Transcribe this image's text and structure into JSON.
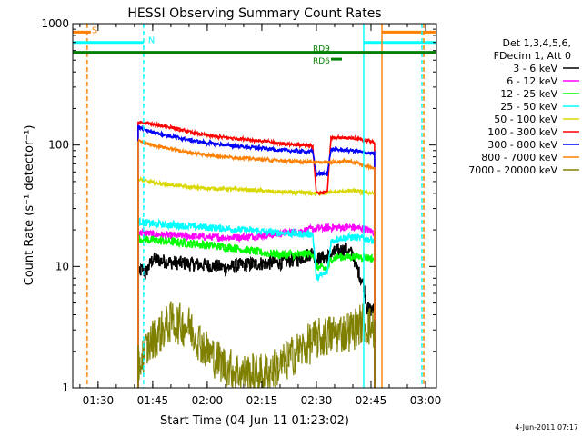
{
  "chart_data": {
    "type": "line",
    "title": "HESSI Observing Summary Count Rates",
    "xlabel": "Start Time (04-Jun-11 01:23:02)",
    "ylabel": "Count Rate (s⁻¹ detector⁻¹)",
    "ylog": true,
    "xlim": [
      "01:23:02",
      "03:03:00"
    ],
    "ylim": [
      1,
      1000
    ],
    "x_ticks": [
      "01:30",
      "01:45",
      "02:00",
      "02:15",
      "02:30",
      "02:45",
      "03:00"
    ],
    "y_ticks": [
      "1",
      "10",
      "100",
      "1000"
    ],
    "grid": false,
    "timestamp": "4-Jun-2011 07:17",
    "legend": {
      "placement": "right",
      "header": [
        "Det 1,3,4,5,6,",
        "FDecim 1, Att 0"
      ],
      "entries": [
        {
          "label": "3 - 6 keV",
          "color": "#000000"
        },
        {
          "label": "6 - 12 keV",
          "color": "#ff00ff"
        },
        {
          "label": "12 - 25 keV",
          "color": "#00ff00"
        },
        {
          "label": "25 - 50 keV",
          "color": "#00ffff"
        },
        {
          "label": "50 - 100 keV",
          "color": "#d8d800"
        },
        {
          "label": "100 - 300 keV",
          "color": "#ff0000"
        },
        {
          "label": "300 - 800 keV",
          "color": "#0000ff"
        },
        {
          "label": "800 - 7000 keV",
          "color": "#ff8000"
        },
        {
          "label": "7000 - 20000 keV",
          "color": "#808000"
        }
      ]
    },
    "series": [
      {
        "name": "3 - 6 keV",
        "color": "#000000",
        "noise": 0.12,
        "x": [
          "01:41:00",
          "01:42:00",
          "01:43:00",
          "01:45:00",
          "01:50:00",
          "01:55:00",
          "02:00:00",
          "02:05:00",
          "02:10:00",
          "02:15:00",
          "02:20:00",
          "02:25:00",
          "02:29:00",
          "02:30:00",
          "02:33:00",
          "02:35:00",
          "02:38:00",
          "02:40:00",
          "02:41:00",
          "02:43:00",
          "02:44:00",
          "02:46:00"
        ],
        "y": [
          8.5,
          9.5,
          8.8,
          11.5,
          10.8,
          10.5,
          10.2,
          9.8,
          10.3,
          10.6,
          10.8,
          11.5,
          13,
          11.5,
          12,
          13,
          14,
          12.5,
          10,
          7,
          4.5,
          4.3
        ]
      },
      {
        "name": "6 - 12 keV",
        "color": "#ff00ff",
        "noise": 0.06,
        "x": [
          "01:41:00",
          "01:45:00",
          "01:50:00",
          "01:55:00",
          "02:00:00",
          "02:05:00",
          "02:10:00",
          "02:15:00",
          "02:20:00",
          "02:25:00",
          "02:30:00",
          "02:35:00",
          "02:40:00",
          "02:43:00",
          "02:46:00"
        ],
        "y": [
          19,
          18.5,
          18,
          17.8,
          17.5,
          17.3,
          17.5,
          18,
          18.5,
          19.5,
          20.5,
          21,
          21,
          20.5,
          19
        ]
      },
      {
        "name": "12 - 25 keV",
        "color": "#00ff00",
        "noise": 0.07,
        "x": [
          "01:41:00",
          "01:45:00",
          "01:50:00",
          "01:55:00",
          "02:00:00",
          "02:05:00",
          "02:10:00",
          "02:15:00",
          "02:20:00",
          "02:25:00",
          "02:29:00",
          "02:30:00",
          "02:33:00",
          "02:34:00",
          "02:36:00",
          "02:40:00",
          "02:43:00",
          "02:46:00"
        ],
        "y": [
          17,
          16.5,
          16,
          15.5,
          15,
          14.5,
          13.8,
          13,
          12.5,
          12.5,
          12.8,
          10,
          9.5,
          11.5,
          12,
          12,
          12,
          11.5
        ]
      },
      {
        "name": "25 - 50 keV",
        "color": "#00ffff",
        "noise": 0.06,
        "x": [
          "01:41:00",
          "01:45:00",
          "01:50:00",
          "01:55:00",
          "02:00:00",
          "02:05:00",
          "02:10:00",
          "02:15:00",
          "02:20:00",
          "02:25:00",
          "02:29:00",
          "02:30:00",
          "02:33:00",
          "02:34:00",
          "02:36:00",
          "02:40:00",
          "02:43:00",
          "02:46:00"
        ],
        "y": [
          23.5,
          22.5,
          22,
          21.5,
          21,
          20.5,
          20,
          19.5,
          19,
          18.5,
          18.5,
          8,
          9,
          16,
          17,
          17.5,
          17,
          16.5
        ]
      },
      {
        "name": "50 - 100 keV",
        "color": "#d8d800",
        "noise": 0.03,
        "x": [
          "01:41:00",
          "01:45:00",
          "01:50:00",
          "01:55:00",
          "02:00:00",
          "02:05:00",
          "02:10:00",
          "02:15:00",
          "02:20:00",
          "02:25:00",
          "02:30:00",
          "02:35:00",
          "02:40:00",
          "02:43:00",
          "02:46:00"
        ],
        "y": [
          52,
          49,
          47,
          45,
          44,
          43.5,
          43,
          42,
          41,
          40.5,
          40,
          41,
          42,
          41,
          40
        ]
      },
      {
        "name": "100 - 300 keV",
        "color": "#ff0000",
        "noise": 0.025,
        "x": [
          "01:41:00",
          "01:45:00",
          "01:50:00",
          "01:55:00",
          "02:00:00",
          "02:05:00",
          "02:10:00",
          "02:15:00",
          "02:20:00",
          "02:25:00",
          "02:29:00",
          "02:30:00",
          "02:33:00",
          "02:34:00",
          "02:38:00",
          "02:40:00",
          "02:43:00",
          "02:46:00"
        ],
        "y": [
          155,
          148,
          140,
          128,
          120,
          115,
          112,
          108,
          103,
          100,
          98,
          40,
          41,
          115,
          115,
          114,
          110,
          105
        ]
      },
      {
        "name": "300 - 800 keV",
        "color": "#0000ff",
        "noise": 0.03,
        "x": [
          "01:41:00",
          "01:45:00",
          "01:50:00",
          "01:55:00",
          "02:00:00",
          "02:05:00",
          "02:10:00",
          "02:15:00",
          "02:20:00",
          "02:25:00",
          "02:29:00",
          "02:30:00",
          "02:33:00",
          "02:34:00",
          "02:38:00",
          "02:40:00",
          "02:43:00",
          "02:46:00"
        ],
        "y": [
          140,
          128,
          118,
          110,
          104,
          100,
          97,
          94,
          91,
          89,
          88,
          58,
          58,
          92,
          91,
          90,
          87,
          85
        ]
      },
      {
        "name": "800 - 7000 keV",
        "color": "#ff8000",
        "noise": 0.025,
        "x": [
          "01:41:00",
          "01:45:00",
          "01:50:00",
          "01:55:00",
          "02:00:00",
          "02:05:00",
          "02:10:00",
          "02:15:00",
          "02:20:00",
          "02:25:00",
          "02:29:00",
          "02:30:00",
          "02:33:00",
          "02:34:00",
          "02:38:00",
          "02:40:00",
          "02:43:00",
          "02:46:00"
        ],
        "y": [
          108,
          100,
          93,
          87,
          83,
          80,
          78,
          76,
          74,
          73,
          73,
          72,
          72,
          72,
          74,
          73,
          68,
          64
        ]
      },
      {
        "name": "7000 - 20000 keV",
        "color": "#808000",
        "noise": 0.35,
        "x": [
          "01:41:00",
          "01:43:00",
          "01:45:00",
          "01:50:00",
          "01:55:00",
          "02:00:00",
          "02:05:00",
          "02:10:00",
          "02:15:00",
          "02:20:00",
          "02:25:00",
          "02:30:00",
          "02:35:00",
          "02:40:00",
          "02:43:00",
          "02:46:00"
        ],
        "y": [
          1.5,
          2.0,
          2.5,
          3.5,
          3.2,
          2.0,
          1.5,
          1.3,
          1.3,
          1.5,
          2.0,
          2.5,
          2.8,
          3.0,
          3.5,
          3.0
        ]
      }
    ],
    "time_markers": [
      {
        "time": "01:27:00",
        "label": "S",
        "color": "#ff8000",
        "style": "dash",
        "bar_from": "01:23:02",
        "bar_to": "01:28:00",
        "level": 850
      },
      {
        "time": "01:42:30",
        "label": "N",
        "color": "#00ffff",
        "style": "dash",
        "bar_from": "01:23:02",
        "bar_to": "01:42:30",
        "level": 700
      },
      {
        "time": "02:43:00",
        "label": "",
        "color": "#00ffff",
        "style": "solid",
        "bar_from": "02:43:00",
        "bar_to": "03:03:00",
        "level": 700
      },
      {
        "time": "02:48:00",
        "label": "",
        "color": "#ff8000",
        "style": "solid",
        "bar_from": "02:48:00",
        "bar_to": "03:03:00",
        "level": 850
      },
      {
        "time": "02:59:00",
        "label": "",
        "color": "#00ffff",
        "style": "dash",
        "bar_from": null,
        "bar_to": null,
        "level": null
      },
      {
        "time": "02:59:30",
        "label": "",
        "color": "#ff8000",
        "style": "dash",
        "bar_from": null,
        "bar_to": null,
        "level": null
      }
    ],
    "mode_bars": [
      {
        "label": "RD9",
        "color": "#008000",
        "from": "01:23:02",
        "to": "03:03:00",
        "level": 580
      },
      {
        "label": "RD6",
        "color": "#008000",
        "from": "02:34:00",
        "to": "02:37:00",
        "level": 510
      }
    ],
    "data_edges": [
      "01:41:00",
      "02:46:00"
    ]
  }
}
